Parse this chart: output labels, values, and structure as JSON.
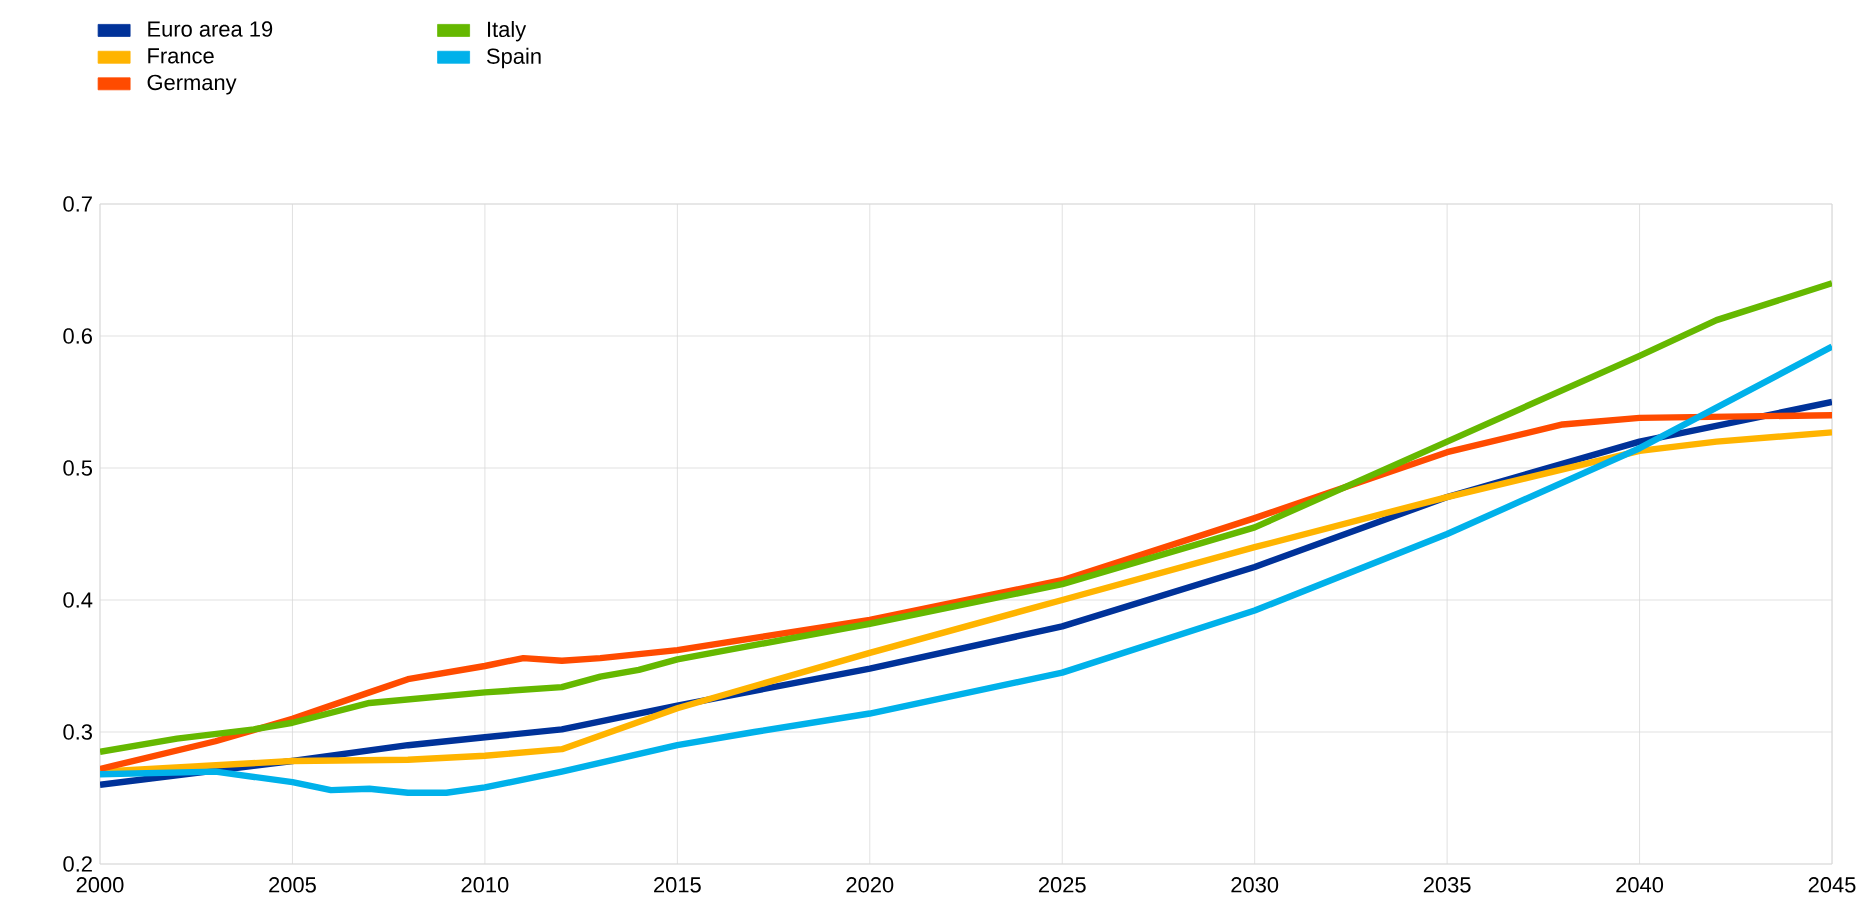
{
  "chart_data": {
    "type": "line",
    "legend": "top left",
    "grid": true,
    "xlim": [
      2000,
      2045
    ],
    "xticks": [
      2000,
      2005,
      2010,
      2015,
      2020,
      2025,
      2030,
      2035,
      2040,
      2045
    ],
    "ylim": [
      0.2,
      0.7
    ],
    "yticks": [
      0.2,
      0.3,
      0.4,
      0.5,
      0.6,
      0.7
    ],
    "series": [
      {
        "name": "Euro area 19",
        "color": "#003299",
        "x": [
          2000,
          2005,
          2008,
          2010,
          2012,
          2015,
          2020,
          2025,
          2030,
          2035,
          2040,
          2045
        ],
        "values": [
          0.26,
          0.278,
          0.29,
          0.296,
          0.302,
          0.32,
          0.348,
          0.38,
          0.425,
          0.478,
          0.52,
          0.55
        ]
      },
      {
        "name": "France",
        "color": "#ffb400",
        "x": [
          2000,
          2005,
          2008,
          2010,
          2012,
          2015,
          2020,
          2025,
          2030,
          2035,
          2040,
          2042,
          2045
        ],
        "values": [
          0.27,
          0.278,
          0.279,
          0.282,
          0.287,
          0.318,
          0.36,
          0.4,
          0.44,
          0.478,
          0.513,
          0.52,
          0.527
        ]
      },
      {
        "name": "Germany",
        "color": "#ff4b00",
        "x": [
          2000,
          2003,
          2005,
          2007,
          2008,
          2010,
          2011,
          2012,
          2013,
          2015,
          2020,
          2025,
          2030,
          2035,
          2038,
          2040,
          2045
        ],
        "values": [
          0.272,
          0.293,
          0.31,
          0.33,
          0.34,
          0.35,
          0.356,
          0.354,
          0.356,
          0.362,
          0.385,
          0.415,
          0.462,
          0.512,
          0.533,
          0.538,
          0.54
        ]
      },
      {
        "name": "Italy",
        "color": "#65b800",
        "x": [
          2000,
          2002,
          2004,
          2005,
          2007,
          2010,
          2012,
          2013,
          2014,
          2015,
          2020,
          2025,
          2030,
          2035,
          2040,
          2042,
          2045
        ],
        "values": [
          0.285,
          0.295,
          0.302,
          0.307,
          0.322,
          0.33,
          0.334,
          0.342,
          0.347,
          0.355,
          0.382,
          0.412,
          0.455,
          0.52,
          0.585,
          0.612,
          0.64
        ]
      },
      {
        "name": "Spain",
        "color": "#00b1ea",
        "x": [
          2000,
          2003,
          2005,
          2006,
          2007,
          2008,
          2009,
          2010,
          2012,
          2015,
          2017,
          2020,
          2025,
          2030,
          2035,
          2040,
          2045
        ],
        "values": [
          0.268,
          0.27,
          0.262,
          0.256,
          0.257,
          0.254,
          0.254,
          0.258,
          0.27,
          0.29,
          0.3,
          0.314,
          0.345,
          0.392,
          0.45,
          0.515,
          0.592
        ]
      }
    ]
  }
}
